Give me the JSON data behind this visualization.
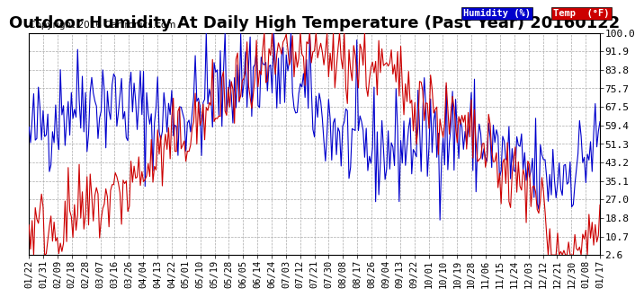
{
  "title": "Outdoor Humidity At Daily High Temperature (Past Year) 20160122",
  "copyright": "Copyright 2016 Cartronics.com",
  "legend_humidity": "Humidity (%)",
  "legend_temp": "Temp  (°F)",
  "humidity_color": "#0000cc",
  "temp_color": "#cc0000",
  "legend_humidity_bg": "#0000cc",
  "legend_temp_bg": "#cc0000",
  "yticks": [
    2.6,
    10.7,
    18.8,
    27.0,
    35.1,
    43.2,
    51.3,
    59.4,
    67.5,
    75.7,
    83.8,
    91.9,
    100.0
  ],
  "ylim": [
    2.6,
    100.0
  ],
  "xtick_labels": [
    "01/22",
    "01/31",
    "02/09",
    "02/18",
    "02/28",
    "03/07",
    "03/16",
    "03/26",
    "04/04",
    "04/13",
    "04/22",
    "05/01",
    "05/10",
    "05/19",
    "05/28",
    "06/05",
    "06/14",
    "06/24",
    "07/03",
    "07/12",
    "07/21",
    "07/30",
    "08/08",
    "08/17",
    "08/26",
    "09/04",
    "09/13",
    "09/22",
    "10/01",
    "10/10",
    "10/19",
    "10/28",
    "11/06",
    "11/15",
    "11/24",
    "12/03",
    "12/12",
    "12/21",
    "12/30",
    "01/08",
    "01/17"
  ],
  "background_color": "#ffffff",
  "plot_bg_color": "#ffffff",
  "grid_color": "#aaaaaa",
  "title_fontsize": 13,
  "axis_fontsize": 8,
  "copyright_fontsize": 7.5
}
